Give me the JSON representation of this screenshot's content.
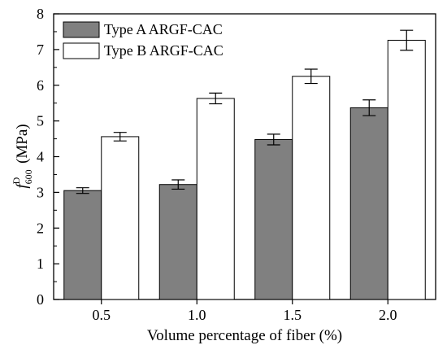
{
  "chart_data": {
    "type": "bar",
    "categories": [
      "0.5",
      "1.0",
      "1.5",
      "2.0"
    ],
    "series": [
      {
        "name": "Type A ARGF-CAC",
        "values": [
          3.05,
          3.22,
          4.48,
          5.37
        ],
        "errors": [
          0.08,
          0.13,
          0.15,
          0.22
        ],
        "color": "#808080"
      },
      {
        "name": "Type B ARGF-CAC",
        "values": [
          4.56,
          5.63,
          6.25,
          7.26
        ],
        "errors": [
          0.12,
          0.15,
          0.2,
          0.28
        ],
        "color": "#ffffff"
      }
    ],
    "title": "",
    "xlabel": "Volume percentage of fiber (%)",
    "ylabel": {
      "symbol": "f",
      "subscript": "600",
      "superscript": "D",
      "unit": " (MPa)"
    },
    "ylim": [
      0,
      8
    ],
    "yticks": [
      "0",
      "1",
      "2",
      "3",
      "4",
      "5",
      "6",
      "7",
      "8"
    ],
    "legend": "top-left",
    "grid": false
  }
}
